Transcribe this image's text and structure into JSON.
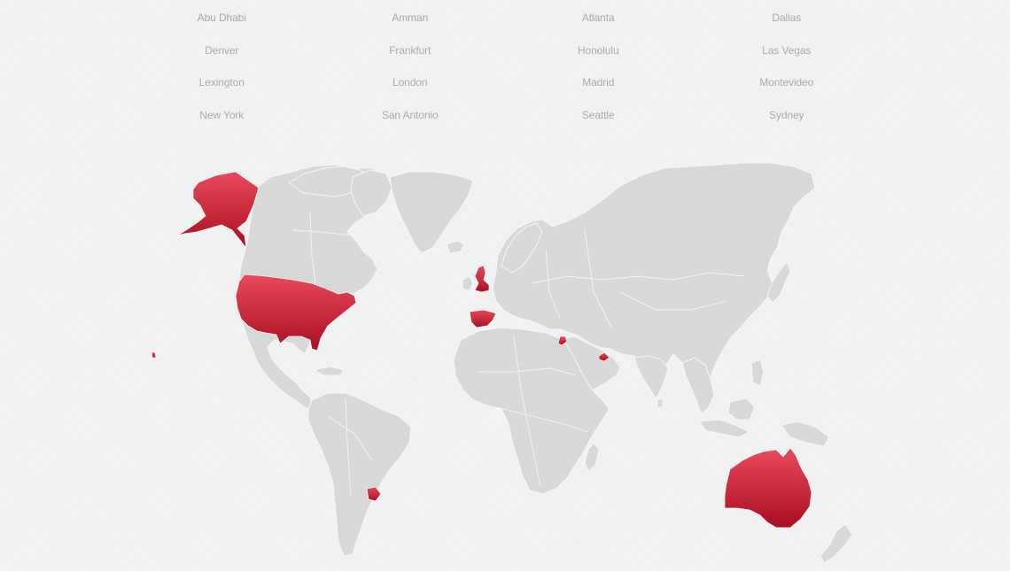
{
  "cities": [
    "Abu Dhabi",
    "Amman",
    "Atlanta",
    "Dallas",
    "Denver",
    "Frankfurt",
    "Honolulu",
    "Las Vegas",
    "Lexington",
    "London",
    "Madrid",
    "Montevideo",
    "New York",
    "San Antonio",
    "Seattle",
    "Sydney"
  ],
  "map": {
    "land_color": "#d8d8d8",
    "highlight_color_top": "#ea4a5a",
    "highlight_color_bottom": "#a80f22",
    "highlighted_countries": [
      "United States",
      "Alaska (United States)",
      "Hawaii (United States)",
      "United Kingdom",
      "Spain",
      "Jordan",
      "United Arab Emirates",
      "Uruguay",
      "Australia"
    ]
  }
}
